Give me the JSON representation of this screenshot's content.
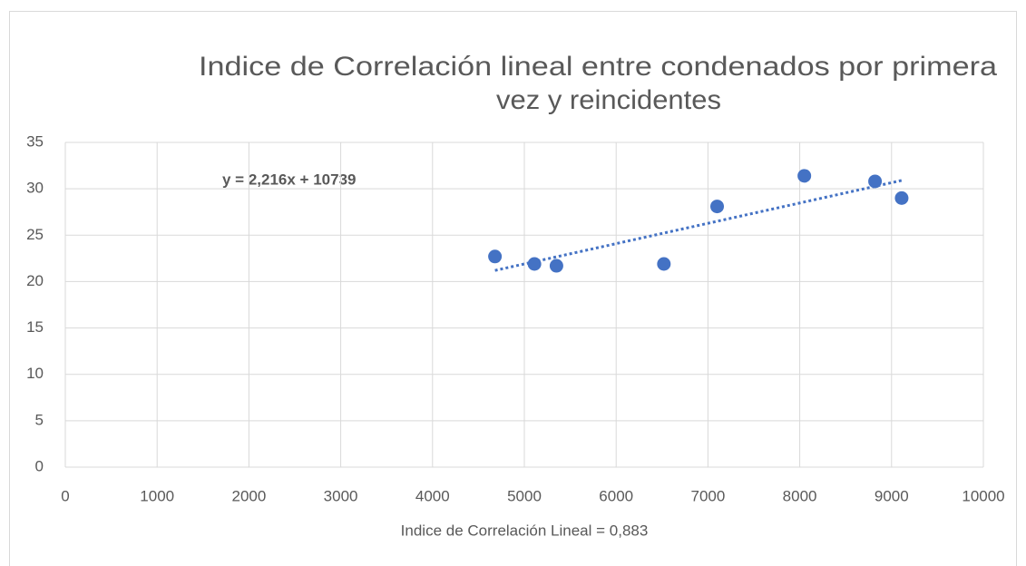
{
  "chart_data": {
    "type": "scatter",
    "title": [
      "Indice de Correlación lineal entre condenados por primera",
      "vez y reincidentes"
    ],
    "x_label": "Indice de Correlación Lineal = 0,883",
    "annotation": "y = 2,216x + 10739",
    "x": [
      4680,
      5110,
      5350,
      6520,
      7100,
      8050,
      8820,
      9110
    ],
    "values": [
      22.7,
      21.9,
      21.7,
      21.9,
      28.1,
      31.4,
      30.8,
      29.0
    ],
    "color": "#4472c4",
    "trendline": {
      "x": [
        4680,
        9110
      ],
      "values": [
        21.2,
        30.9
      ]
    },
    "xlim": [
      0,
      10000
    ],
    "xticks": [
      0,
      1000,
      2000,
      3000,
      4000,
      5000,
      6000,
      7000,
      8000,
      9000,
      10000
    ],
    "ylim": [
      0,
      35
    ],
    "yticks": [
      0,
      5,
      10,
      15,
      20,
      25,
      30,
      35
    ],
    "grid": true
  }
}
